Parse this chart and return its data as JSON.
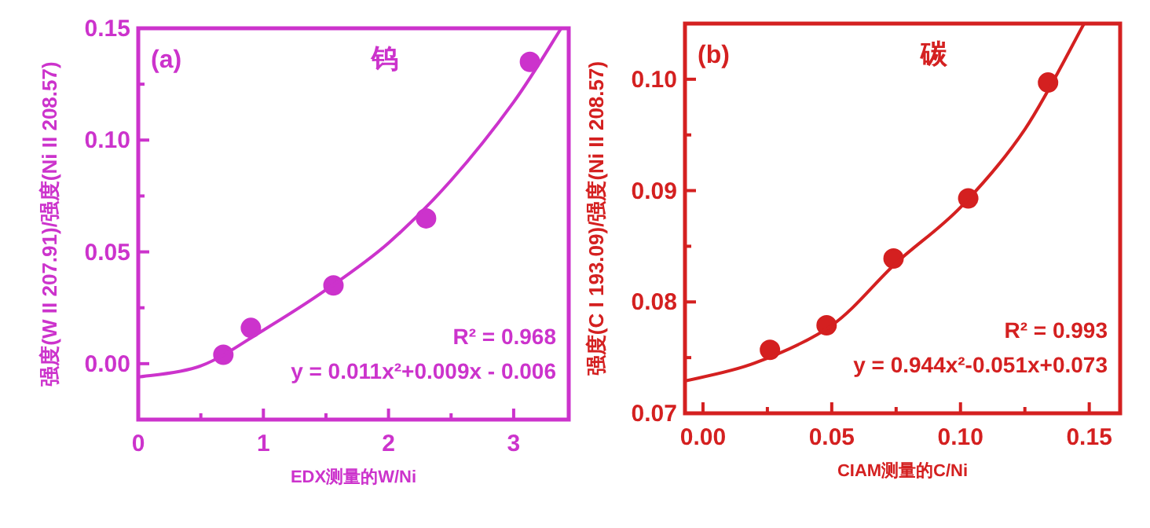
{
  "chart_data": [
    {
      "type": "scatter",
      "title": "钨",
      "xlabel": "EDX测量的W/Ni",
      "ylabel": "强度(W II 207.91)/强度(Ni II 208.57)",
      "color": "#cc33cc",
      "annotations": [
        "(a)",
        "R² = 0.968",
        "y = 0.011x²+0.009x - 0.006"
      ],
      "xlim": [
        0,
        3.44
      ],
      "ylim": [
        -0.025,
        0.15
      ],
      "xticks": [
        0,
        {
          "value": 0.5,
          "label": null
        },
        1,
        {
          "value": 1.5,
          "label": null
        },
        2,
        {
          "value": 2.5,
          "label": null
        },
        3
      ],
      "yticks": [
        {
          "value": 0,
          "label": "0.00"
        },
        {
          "value": 0.025,
          "label": null
        },
        {
          "value": 0.05,
          "label": "0.05"
        },
        {
          "value": 0.075,
          "label": null
        },
        {
          "value": 0.1,
          "label": "0.10"
        },
        {
          "value": 0.125,
          "label": null
        },
        {
          "value": 0.15,
          "label": "0.15"
        }
      ],
      "series": [
        {
          "marker": "circle",
          "color": "#cc33cc",
          "x": [
            0.68,
            0.9,
            1.56,
            2.3,
            3.13
          ],
          "values": [
            0.004,
            0.016,
            0.035,
            0.065,
            0.135
          ]
        },
        {
          "type": "line",
          "color": "#cc33cc",
          "x": [
            0,
            0.5,
            1,
            1.5,
            2,
            2.5,
            3,
            3.38
          ],
          "values": [
            -0.006,
            -0.001,
            0.015,
            0.033,
            0.054,
            0.082,
            0.117,
            0.15
          ]
        }
      ]
    },
    {
      "type": "scatter",
      "title": "碳",
      "xlabel": "CIAM测量的C/Ni",
      "ylabel": "强度(C I 193.09)/强度(Ni II 208.57)",
      "color": "#d42020",
      "annotations": [
        "(b)",
        "R² = 0.993",
        "y = 0.944x²-0.051x+0.073"
      ],
      "xlim": [
        -0.007,
        0.162
      ],
      "ylim": [
        0.07,
        0.105
      ],
      "xticks": [
        {
          "value": 0,
          "label": "0.00"
        },
        {
          "value": 0.025,
          "label": null
        },
        {
          "value": 0.05,
          "label": "0.05"
        },
        {
          "value": 0.075,
          "label": null
        },
        {
          "value": 0.1,
          "label": "0.10"
        },
        {
          "value": 0.125,
          "label": null
        },
        {
          "value": 0.15,
          "label": "0.15"
        }
      ],
      "yticks": [
        {
          "value": 0.07,
          "label": "0.07"
        },
        {
          "value": 0.075,
          "label": null
        },
        {
          "value": 0.08,
          "label": "0.08"
        },
        {
          "value": 0.085,
          "label": null
        },
        {
          "value": 0.09,
          "label": "0.09"
        },
        {
          "value": 0.095,
          "label": null
        },
        {
          "value": 0.1,
          "label": "0.10"
        }
      ],
      "series": [
        {
          "marker": "circle",
          "color": "#d42020",
          "x": [
            0.026,
            0.048,
            0.074,
            0.103,
            0.134
          ],
          "values": [
            0.0757,
            0.0779,
            0.0839,
            0.0893,
            0.0997
          ]
        },
        {
          "type": "line",
          "color": "#d42020",
          "x": [
            -0.007,
            0.02,
            0.05,
            0.075,
            0.1,
            0.125,
            0.148
          ],
          "values": [
            0.0729,
            0.0745,
            0.0779,
            0.0835,
            0.0885,
            0.0955,
            0.105
          ]
        }
      ]
    }
  ]
}
